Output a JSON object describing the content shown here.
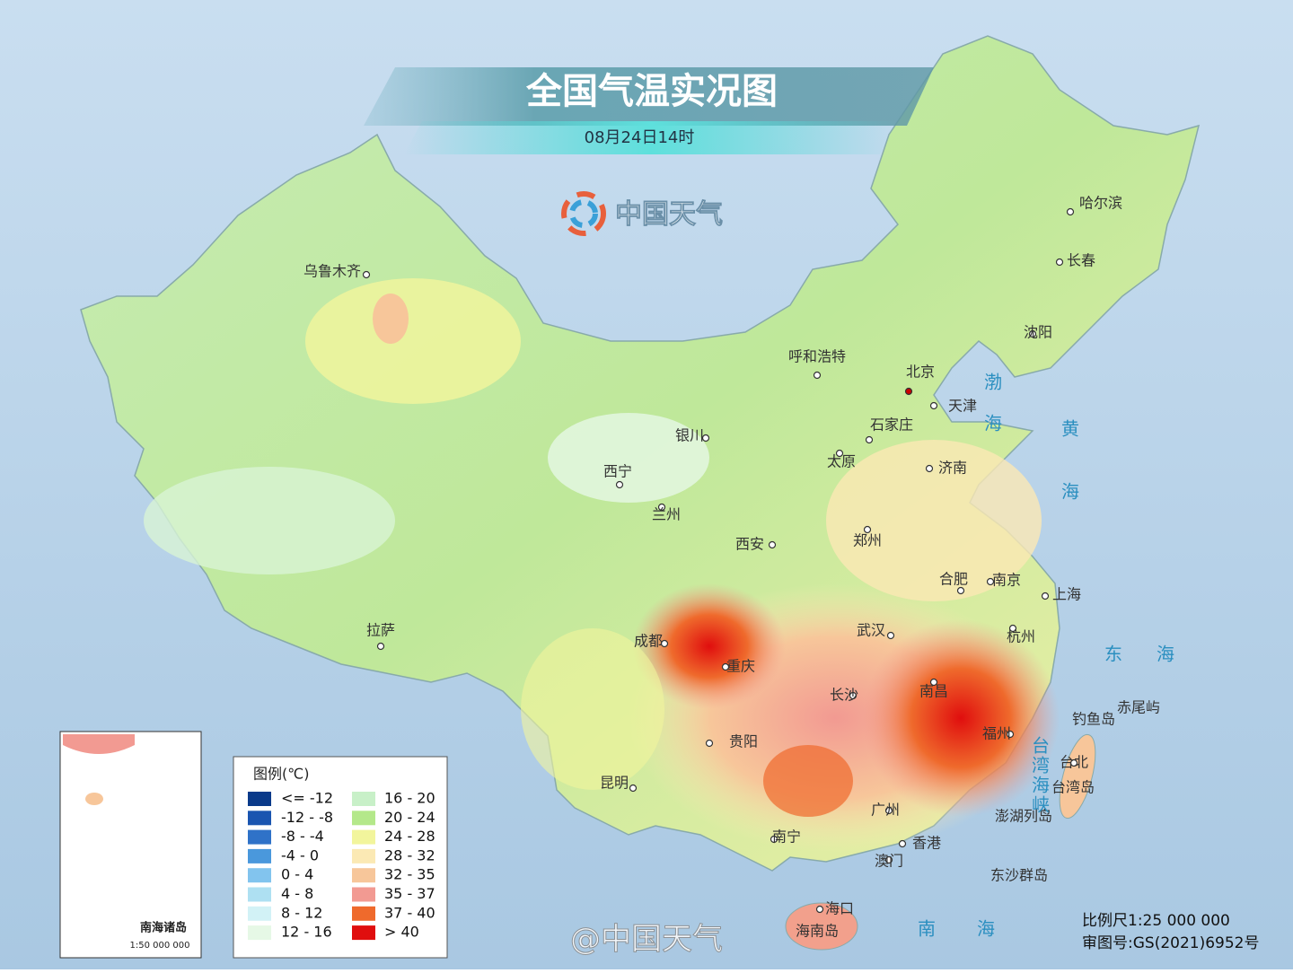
{
  "header": {
    "title": "全国气温实况图",
    "subtitle": "08月24日14时",
    "brand": "中国天气"
  },
  "cities": [
    "乌鲁木齐",
    "呼和浩特",
    "北京",
    "天津",
    "石家庄",
    "哈尔滨",
    "长春",
    "沈阳",
    "银川",
    "西宁",
    "兰州",
    "太原",
    "济南",
    "郑州",
    "西安",
    "合肥",
    "南京",
    "上海",
    "杭州",
    "武汉",
    "成都",
    "重庆",
    "拉萨",
    "长沙",
    "南昌",
    "贵阳",
    "福州",
    "台北",
    "昆明",
    "广州",
    "南宁",
    "香港",
    "澳门",
    "海口"
  ],
  "places": [
    "台湾岛",
    "海南岛",
    "钓鱼岛",
    "赤尾屿",
    "澎湖列岛",
    "东沙群岛"
  ],
  "seas": [
    "渤海",
    "黄海",
    "东海",
    "台湾海峡",
    "南海"
  ],
  "legend": {
    "title": "图例(℃)",
    "items": [
      {
        "label": "<= -12",
        "color": "#0a3a8a"
      },
      {
        "label": "-12 - -8",
        "color": "#1a55b0"
      },
      {
        "label": "-8 - -4",
        "color": "#2f72c8"
      },
      {
        "label": "-4 - 0",
        "color": "#4a98dc"
      },
      {
        "label": "0 - 4",
        "color": "#82c4ee"
      },
      {
        "label": "4 - 8",
        "color": "#aee0f2"
      },
      {
        "label": "8 - 12",
        "color": "#d2f2f6"
      },
      {
        "label": "12 - 16",
        "color": "#e6f8e6"
      },
      {
        "label": "16 - 20",
        "color": "#c8f0c8"
      },
      {
        "label": "20 - 24",
        "color": "#b4e88a"
      },
      {
        "label": "24 - 28",
        "color": "#f2f59c"
      },
      {
        "label": "28 - 32",
        "color": "#fbe9b4"
      },
      {
        "label": "32 - 35",
        "color": "#f7c69a"
      },
      {
        "label": "35 - 37",
        "color": "#f29a92"
      },
      {
        "label": "37 - 40",
        "color": "#ef6a2c"
      },
      {
        "label": "> 40",
        "color": "#e00e0e"
      }
    ]
  },
  "inset": {
    "title": "南海诸岛",
    "scale": "1:50 000 000"
  },
  "footer": {
    "scale": "比例尺1:25 000 000",
    "approval": "审图号:GS(2021)6952号",
    "watermark": "@中国天气"
  }
}
